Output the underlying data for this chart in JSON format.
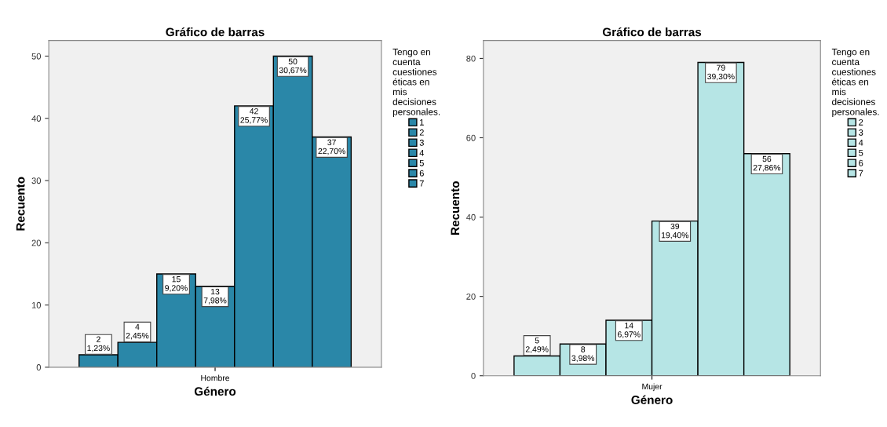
{
  "chart_data": [
    {
      "type": "bar",
      "title": "Gráfico de barras",
      "xlabel": "Género",
      "ylabel": "Recuento",
      "legend_title": "Tengo en cuenta cuestiones éticas en mis decisiones personales.",
      "categories": [
        "Hombre"
      ],
      "ylim": [
        0,
        52.5
      ],
      "yticks": [
        0,
        10,
        20,
        30,
        40,
        50
      ],
      "grid": false,
      "legend": "right",
      "series": [
        {
          "name": "1",
          "color": "#2a87a8",
          "values": [
            2
          ],
          "value_labels": [
            "2\n1,23%"
          ]
        },
        {
          "name": "2",
          "color": "#2a87a8",
          "values": [
            4
          ],
          "value_labels": [
            "4\n2,45%"
          ]
        },
        {
          "name": "3",
          "color": "#2a87a8",
          "values": [
            15
          ],
          "value_labels": [
            "15\n9,20%"
          ]
        },
        {
          "name": "4",
          "color": "#2a87a8",
          "values": [
            13
          ],
          "value_labels": [
            "13\n7,98%"
          ]
        },
        {
          "name": "5",
          "color": "#2a87a8",
          "values": [
            42
          ],
          "value_labels": [
            "42\n25,77%"
          ]
        },
        {
          "name": "6",
          "color": "#2a87a8",
          "values": [
            50
          ],
          "value_labels": [
            "50\n30,67%"
          ]
        },
        {
          "name": "7",
          "color": "#2a87a8",
          "values": [
            37
          ],
          "value_labels": [
            "37\n22,70%"
          ]
        }
      ]
    },
    {
      "type": "bar",
      "title": "Gráfico de barras",
      "xlabel": "Género",
      "ylabel": "Recuento",
      "legend_title": "Tengo en cuenta cuestiones éticas en mis decisiones personales.",
      "categories": [
        "Mujer"
      ],
      "ylim": [
        0,
        84.5
      ],
      "yticks": [
        0,
        20,
        40,
        60,
        80
      ],
      "grid": false,
      "legend": "right",
      "series": [
        {
          "name": "2",
          "color": "#b6e5e5",
          "values": [
            5
          ],
          "value_labels": [
            "5\n2,49%"
          ]
        },
        {
          "name": "3",
          "color": "#b6e5e5",
          "values": [
            8
          ],
          "value_labels": [
            "8\n3,98%"
          ]
        },
        {
          "name": "4",
          "color": "#b6e5e5",
          "values": [
            14
          ],
          "value_labels": [
            "14\n6,97%"
          ]
        },
        {
          "name": "5",
          "color": "#b6e5e5",
          "values": [
            39
          ],
          "value_labels": [
            "39\n19,40%"
          ]
        },
        {
          "name": "6",
          "color": "#b6e5e5",
          "values": [
            79
          ],
          "value_labels": [
            "79\n39,30%"
          ]
        },
        {
          "name": "7",
          "color": "#b6e5e5",
          "values": [
            56
          ],
          "value_labels": [
            "56\n27,86%"
          ]
        }
      ]
    }
  ]
}
